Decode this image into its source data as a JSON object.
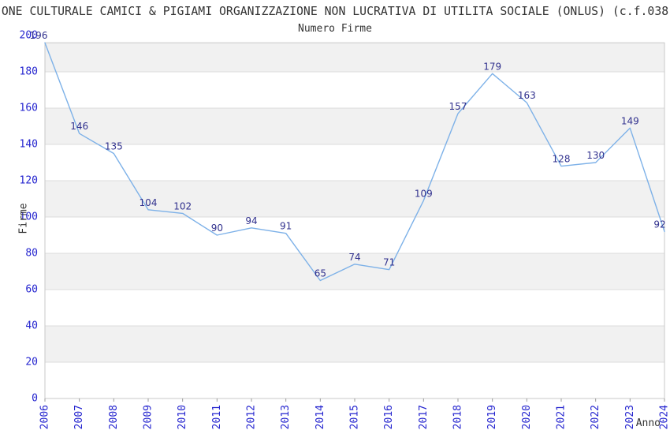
{
  "page": {
    "title": "ONE CULTURALE CAMICI & PIGIAMI ORGANIZZAZIONE NON LUCRATIVA DI UTILITA SOCIALE (ONLUS) (c.f.038",
    "subtitle": "Numero Firme"
  },
  "colors": {
    "line": "#7db1e8",
    "data_label": "#31318e",
    "tick_label": "#2525cf",
    "text": "#333333",
    "band": "#f1f1f1",
    "grid": "#dcdcdc",
    "border": "#c9c9c9",
    "tick_mark": "#999999",
    "background": "#ffffff"
  },
  "chart_data": {
    "type": "line",
    "title": "Numero Firme",
    "xlabel": "Anno",
    "ylabel": "Firme",
    "categories": [
      "2006",
      "2007",
      "2008",
      "2009",
      "2010",
      "2011",
      "2012",
      "2013",
      "2014",
      "2015",
      "2016",
      "2017",
      "2018",
      "2019",
      "2020",
      "2021",
      "2022",
      "2023",
      "2024"
    ],
    "values": [
      196,
      146,
      135,
      104,
      102,
      90,
      94,
      91,
      65,
      74,
      71,
      109,
      157,
      179,
      163,
      128,
      130,
      149,
      92
    ],
    "ylim": [
      0,
      200
    ],
    "ytick_step": 20,
    "yticks": [
      0,
      20,
      40,
      60,
      80,
      100,
      120,
      140,
      160,
      180,
      200
    ],
    "x_tick_rotation": -90,
    "grid": "alternating horizontal gray bands every 20 units, light gridlines",
    "legend": "none",
    "data_labels": true,
    "y_axis_clipped_at_max_value": true
  }
}
